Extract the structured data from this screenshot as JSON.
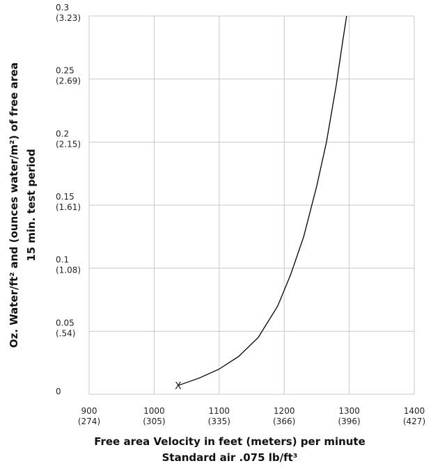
{
  "chart_data": {
    "type": "line",
    "y_label": [
      "Oz. Water/ft² and (ounces water/m²) of free area",
      "15 min. test period"
    ],
    "x_label": [
      "Free area Velocity in feet (meters) per minute",
      "Standard air .075 lb/ft³"
    ],
    "x": [
      1037,
      1070,
      1100,
      1130,
      1160,
      1190,
      1210,
      1230,
      1250,
      1265,
      1280,
      1290,
      1296
    ],
    "values": [
      0.007,
      0.013,
      0.02,
      0.03,
      0.045,
      0.07,
      0.095,
      0.125,
      0.165,
      0.2,
      0.245,
      0.28,
      0.3
    ],
    "color": "#000000",
    "start_marker": "X",
    "xlim": [
      900,
      1400
    ],
    "xticks": [
      {
        "value": 900,
        "label": "900\n(274)"
      },
      {
        "value": 1000,
        "label": "1000\n(305)"
      },
      {
        "value": 1100,
        "label": "1100\n(335)"
      },
      {
        "value": 1200,
        "label": "1200\n(366)"
      },
      {
        "value": 1300,
        "label": "1300\n(396)"
      },
      {
        "value": 1400,
        "label": "1400\n(427)"
      }
    ],
    "ylim": [
      0,
      0.3
    ],
    "yticks": [
      0,
      {
        "value": 0.05,
        "label": "0.05\n(.54)"
      },
      {
        "value": 0.1,
        "label": "0.1\n(1.08)"
      },
      {
        "value": 0.15,
        "label": "0.15\n(1.61)"
      },
      {
        "value": 0.2,
        "label": "0.2\n(2.15)"
      },
      {
        "value": 0.25,
        "label": "0.25\n(2.69)"
      },
      {
        "value": 0.3,
        "label": "0.3\n(3.23)"
      }
    ],
    "grid": true
  }
}
